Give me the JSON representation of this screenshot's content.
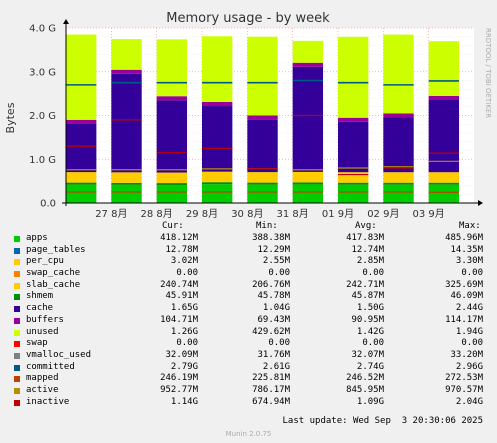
{
  "chart_data": {
    "type": "area",
    "title": "Memory usage - by week",
    "ylabel": "Bytes",
    "side_label": "RRDTOOL / TOBI OETIKER",
    "ylim": [
      0,
      4000000000
    ],
    "y_ticks": [
      {
        "value": 0,
        "label": "0.0"
      },
      {
        "value": 1000000000,
        "label": "1.0 G"
      },
      {
        "value": 2000000000,
        "label": "2.0 G"
      },
      {
        "value": 3000000000,
        "label": "3.0 G"
      },
      {
        "value": 4000000000,
        "label": "4.0 G"
      }
    ],
    "x_ticks": [
      "27 8月",
      "28 8月",
      "29 8月",
      "30 8月",
      "31 8月",
      "01 9月",
      "02 9月",
      "03 9月"
    ],
    "grid": true,
    "days": [
      {
        "apps": 420,
        "shmem": 46,
        "slab": 240,
        "cache": 1100,
        "unused": 1950,
        "committed": 2700,
        "mapped": 250,
        "active": 760,
        "inactive": 1300
      },
      {
        "apps": 415,
        "shmem": 46,
        "slab": 240,
        "cache": 2250,
        "unused": 700,
        "committed": 2750,
        "mapped": 250,
        "active": 760,
        "inactive": 1900
      },
      {
        "apps": 410,
        "shmem": 46,
        "slab": 240,
        "cache": 1650,
        "unused": 1300,
        "committed": 2750,
        "mapped": 250,
        "active": 760,
        "inactive": 1150
      },
      {
        "apps": 430,
        "shmem": 46,
        "slab": 240,
        "cache": 1500,
        "unused": 1500,
        "committed": 2750,
        "mapped": 250,
        "active": 780,
        "inactive": 1250
      },
      {
        "apps": 420,
        "shmem": 46,
        "slab": 240,
        "cache": 1200,
        "unused": 1800,
        "committed": 2750,
        "mapped": 250,
        "active": 780,
        "inactive": 780
      },
      {
        "apps": 425,
        "shmem": 46,
        "slab": 240,
        "cache": 2400,
        "unused": 500,
        "committed": 2800,
        "mapped": 250,
        "active": 760,
        "inactive": 2000
      },
      {
        "apps": 418,
        "shmem": 46,
        "slab": 240,
        "cache": 1150,
        "unused": 1850,
        "committed": 2750,
        "mapped": 250,
        "active": 800,
        "inactive": 650
      },
      {
        "apps": 418,
        "shmem": 46,
        "slab": 240,
        "cache": 1250,
        "unused": 1800,
        "committed": 2700,
        "mapped": 250,
        "active": 830,
        "inactive": 800
      },
      {
        "apps": 418,
        "shmem": 46,
        "slab": 240,
        "cache": 1650,
        "unused": 1250,
        "committed": 2790,
        "mapped": 246,
        "active": 953,
        "inactive": 1140
      }
    ]
  },
  "legend": {
    "headers": {
      "cur": "Cur:",
      "min": "Min:",
      "avg": "Avg:",
      "max": "Max:"
    },
    "rows": [
      {
        "name": "apps",
        "color": "#00cc00",
        "cur": "418.12M",
        "min": "388.38M",
        "avg": "417.83M",
        "max": "485.96M"
      },
      {
        "name": "page_tables",
        "color": "#0066b3",
        "cur": "12.78M",
        "min": "12.29M",
        "avg": "12.74M",
        "max": "14.35M"
      },
      {
        "name": "per_cpu",
        "color": "#ffcc00",
        "cur": "3.02M",
        "min": "2.55M",
        "avg": "2.85M",
        "max": "3.30M"
      },
      {
        "name": "swap_cache",
        "color": "#ff8000",
        "cur": "0.00",
        "min": "0.00",
        "avg": "0.00",
        "max": "0.00"
      },
      {
        "name": "slab_cache",
        "color": "#ffcc00",
        "cur": "240.74M",
        "min": "206.76M",
        "avg": "242.71M",
        "max": "325.69M"
      },
      {
        "name": "shmem",
        "color": "#008f00",
        "cur": "45.91M",
        "min": "45.78M",
        "avg": "45.87M",
        "max": "46.09M"
      },
      {
        "name": "cache",
        "color": "#330099",
        "cur": "1.65G",
        "min": "1.04G",
        "avg": "1.50G",
        "max": "2.44G"
      },
      {
        "name": "buffers",
        "color": "#990099",
        "cur": "104.71M",
        "min": "69.43M",
        "avg": "90.95M",
        "max": "114.17M"
      },
      {
        "name": "unused",
        "color": "#ccff00",
        "cur": "1.26G",
        "min": "429.62M",
        "avg": "1.42G",
        "max": "1.94G"
      },
      {
        "name": "swap",
        "color": "#ff0000",
        "cur": "0.00",
        "min": "0.00",
        "avg": "0.00",
        "max": "0.00"
      },
      {
        "name": "vmalloc_used",
        "color": "#808080",
        "cur": "32.09M",
        "min": "31.76M",
        "avg": "32.07M",
        "max": "33.20M"
      },
      {
        "name": "committed",
        "color": "#005a87",
        "cur": "2.79G",
        "min": "2.61G",
        "avg": "2.74G",
        "max": "2.96G"
      },
      {
        "name": "mapped",
        "color": "#bf4000",
        "cur": "246.19M",
        "min": "225.81M",
        "avg": "246.52M",
        "max": "272.53M"
      },
      {
        "name": "active",
        "color": "#b38f00",
        "cur": "952.77M",
        "min": "786.17M",
        "avg": "845.95M",
        "max": "970.57M"
      },
      {
        "name": "inactive",
        "color": "#c00000",
        "cur": "1.14G",
        "min": "674.94M",
        "avg": "1.09G",
        "max": "2.04G"
      }
    ]
  },
  "footer": {
    "last_update": "Last update: Wed Sep  3 20:30:06 2025",
    "munin": "Munin 2.0.75"
  }
}
